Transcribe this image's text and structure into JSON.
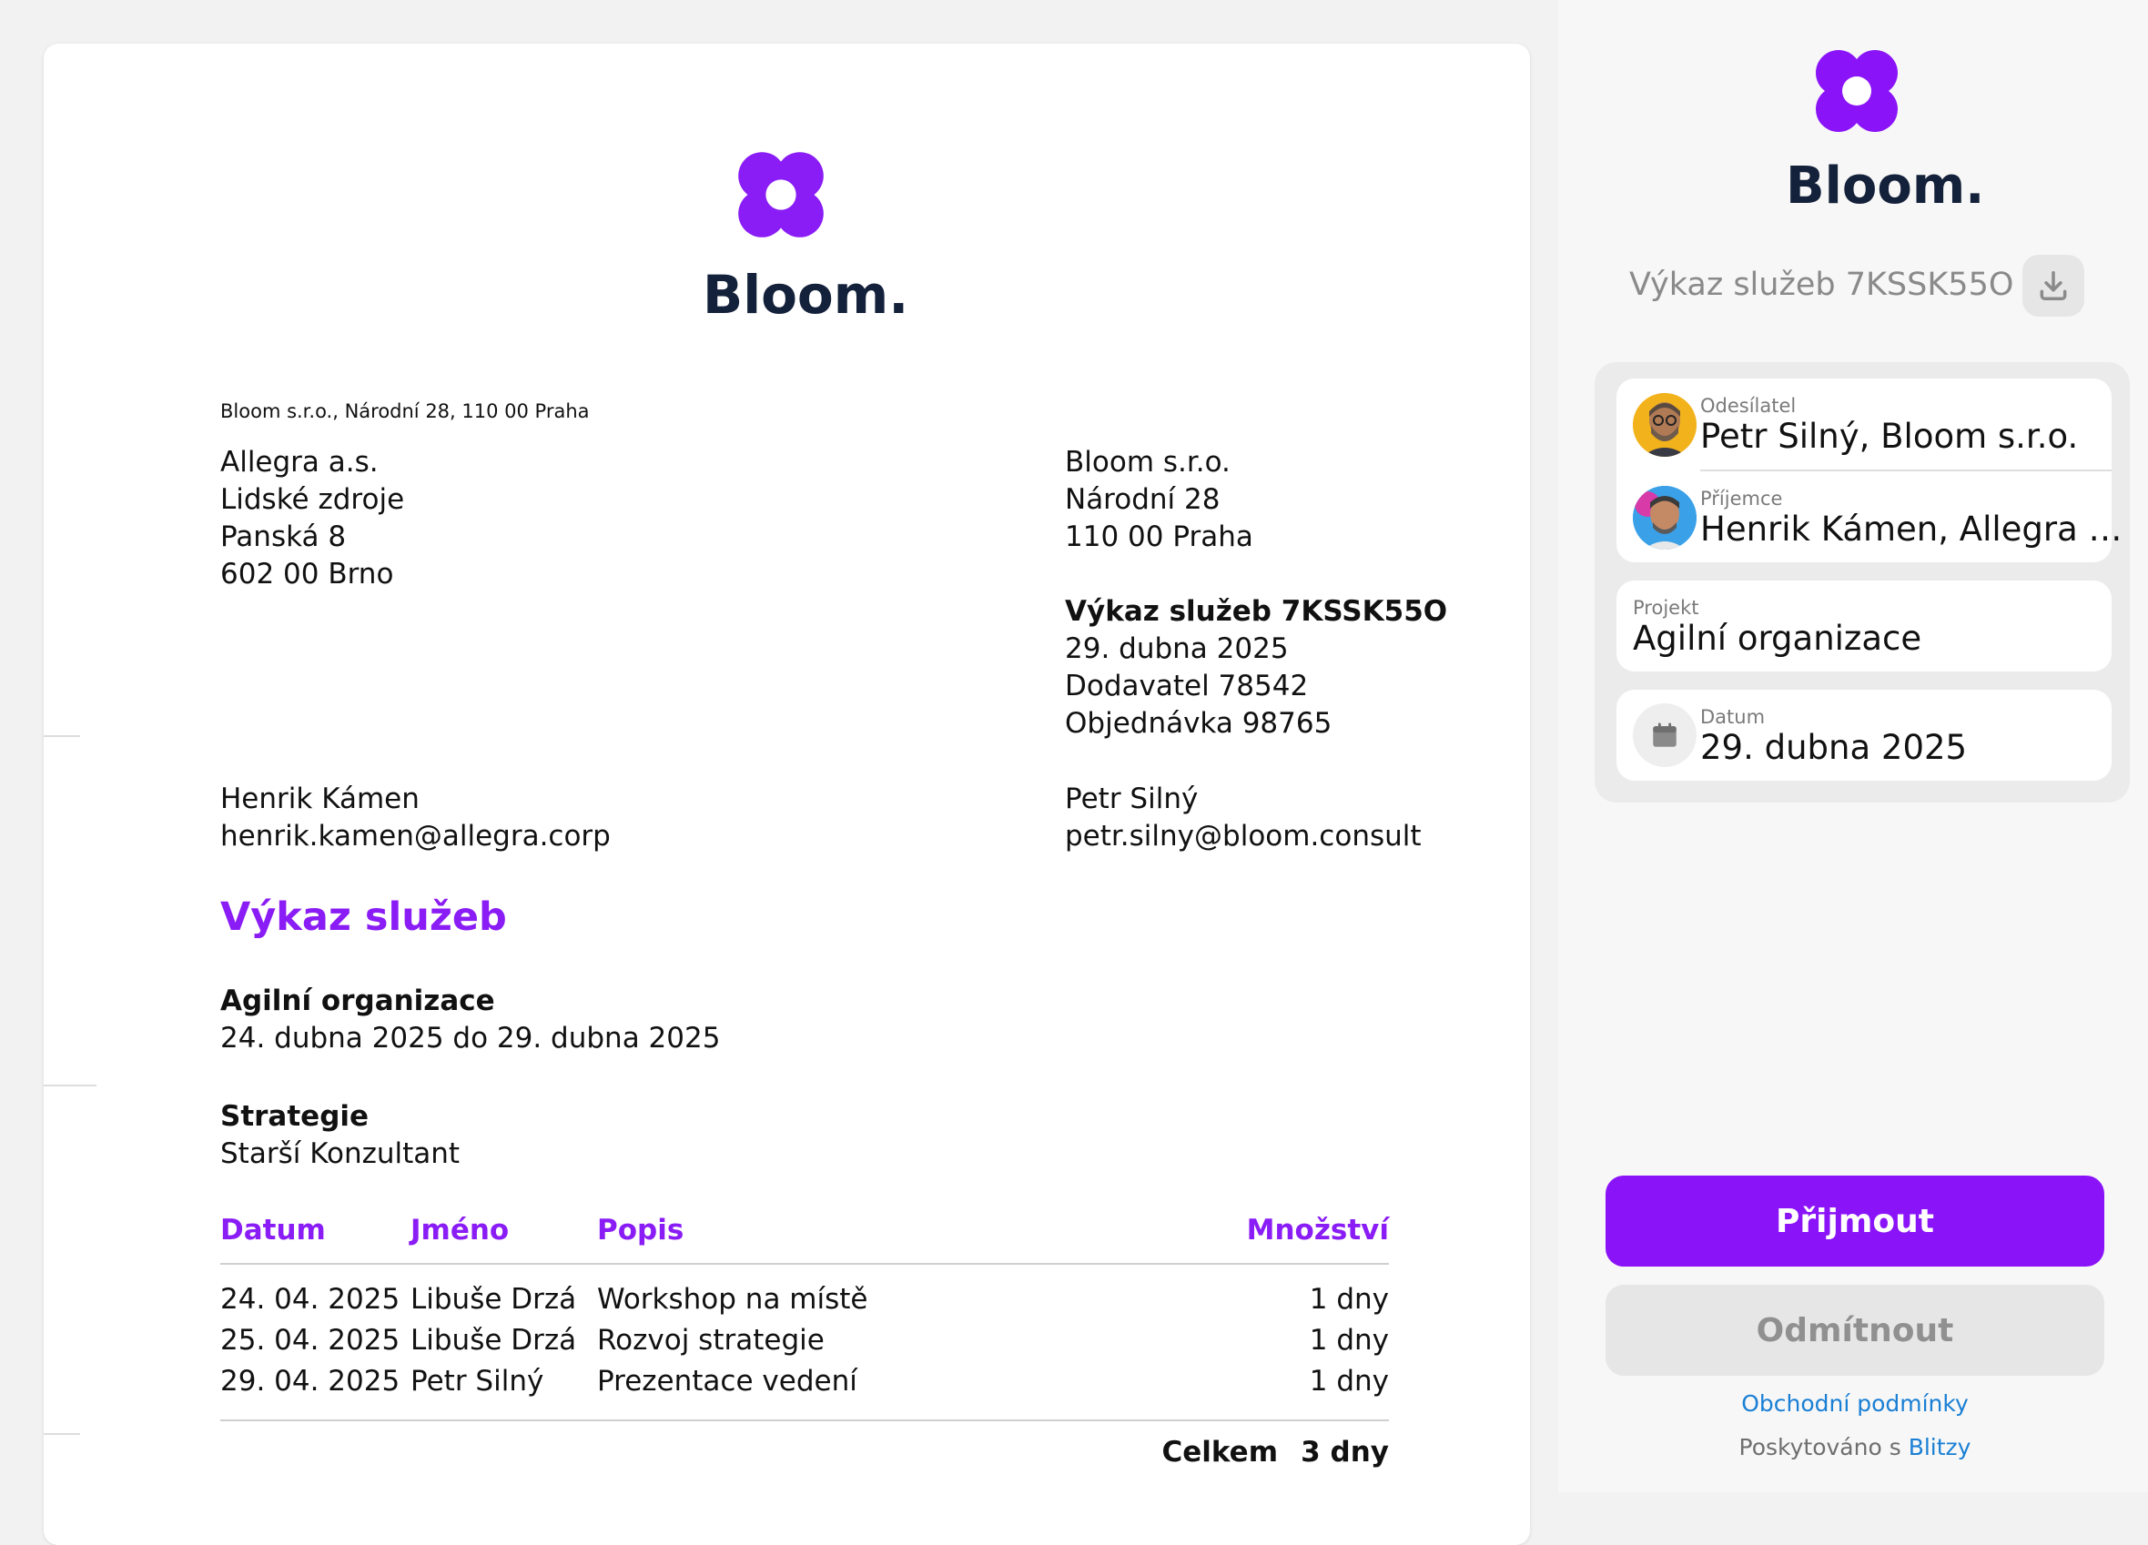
{
  "brand": {
    "name": "Bloom.",
    "color": "#8a1cf5"
  },
  "document": {
    "sender_line": "Bloom s.r.o., Národní 28, 110 00 Praha",
    "recipient_address": [
      "Allegra a.s.",
      "Lidské zdroje",
      "Panská 8",
      "602 00 Brno"
    ],
    "sender_address": [
      "Bloom s.r.o.",
      "Národní 28",
      "110 00 Praha"
    ],
    "meta": {
      "title": "Výkaz služeb 7KSSK55O",
      "date": "29. dubna 2025",
      "supplier": "Dodavatel 78542",
      "order": "Objednávka 98765"
    },
    "recipient_contact": {
      "name": "Henrik Kámen",
      "email": "henrik.kamen@allegra.corp"
    },
    "sender_contact": {
      "name": "Petr Silný",
      "email": "petr.silny@bloom.consult"
    },
    "heading": "Výkaz služeb",
    "project": {
      "name": "Agilní organizace",
      "period": "24. dubna 2025 do 29. dubna 2025"
    },
    "role": {
      "name": "Strategie",
      "title": "Starší Konzultant"
    },
    "table": {
      "headers": {
        "date": "Datum",
        "name": "Jméno",
        "description": "Popis",
        "quantity": "Množství"
      },
      "rows": [
        {
          "date": "24. 04. 2025",
          "name": "Libuše Drzá",
          "description": "Workshop na místě",
          "quantity": "1 dny"
        },
        {
          "date": "25. 04. 2025",
          "name": "Libuše Drzá",
          "description": "Rozvoj strategie",
          "quantity": "1 dny"
        },
        {
          "date": "29. 04. 2025",
          "name": "Petr Silný",
          "description": "Prezentace vedení",
          "quantity": "1 dny"
        }
      ],
      "total_label": "Celkem",
      "total_value": "3 dny"
    }
  },
  "panel": {
    "title": "Výkaz služeb 7KSSK55O",
    "download_icon": "download-icon",
    "sender": {
      "label": "Odesílatel",
      "value": "Petr Silný, Bloom s.r.o."
    },
    "recipient": {
      "label": "Příjemce",
      "value": "Henrik Kámen, Allegra …"
    },
    "project": {
      "label": "Projekt",
      "value": "Agilní organizace"
    },
    "date": {
      "label": "Datum",
      "value": "29. dubna 2025",
      "icon": "calendar-icon"
    },
    "accept_label": "Přijmout",
    "reject_label": "Odmítnout",
    "terms_link": "Obchodní podmínky",
    "powered_prefix": "Poskytováno s",
    "powered_brand": "Blitzy",
    "colors": {
      "accent": "#8a13f8",
      "link": "#1a7fd4"
    }
  }
}
